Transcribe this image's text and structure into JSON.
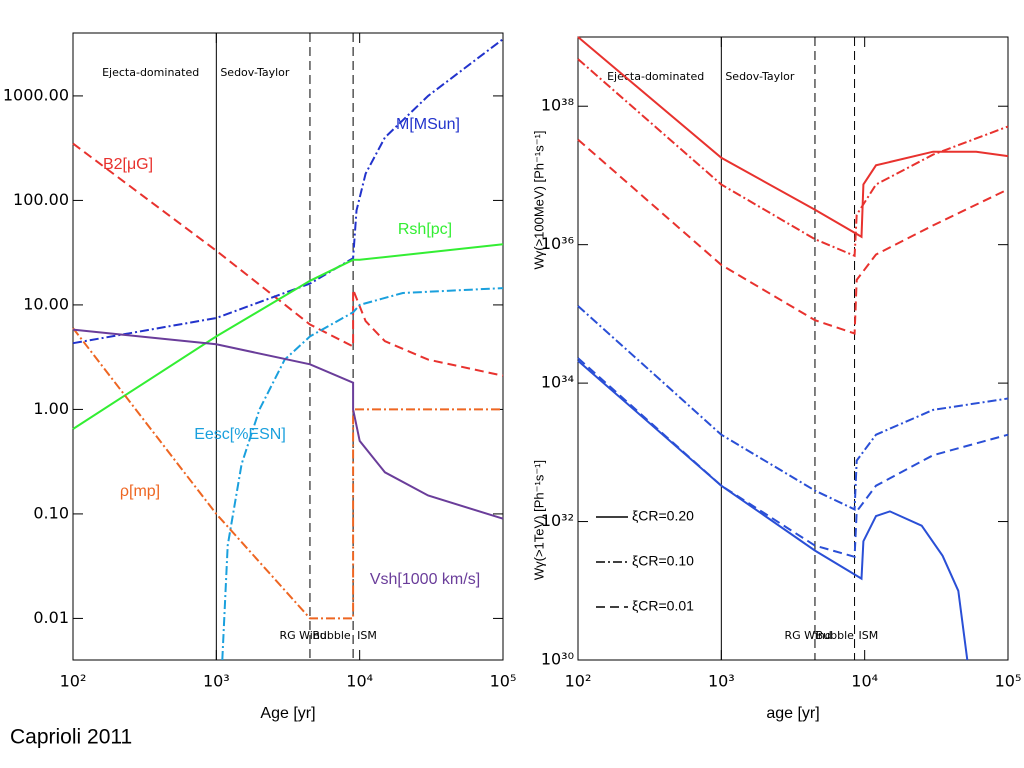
{
  "caption": "Caprioli 2011",
  "chart_data": [
    {
      "type": "line",
      "xlabel": "Age [yr]",
      "xlog": true,
      "ylog": true,
      "xlim": [
        100,
        100000
      ],
      "ylim": [
        0.004,
        4000
      ],
      "xticks": [
        {
          "value": 100,
          "label": "10²"
        },
        {
          "value": 1000,
          "label": "10³"
        },
        {
          "value": 10000,
          "label": "10⁴"
        },
        {
          "value": 100000,
          "label": "10⁵"
        }
      ],
      "yticks": [
        {
          "value": 1000,
          "label": "1000.00"
        },
        {
          "value": 100,
          "label": "100.00"
        },
        {
          "value": 10,
          "label": "10.00"
        },
        {
          "value": 1,
          "label": "1.00"
        },
        {
          "value": 0.1,
          "label": "0.10"
        },
        0.01
      ],
      "annotations": [
        "Ejecta-dominated",
        "Sedov-Taylor",
        "RG Wind",
        "Bubble",
        "ISM"
      ],
      "vlines": [
        {
          "x": 1000,
          "style": "solid"
        },
        {
          "x": 4500,
          "style": "dashed"
        },
        {
          "x": 9000,
          "style": "dashed"
        }
      ],
      "series": [
        {
          "name": "B2[μG]",
          "color": "#e8322e",
          "style": "dashed",
          "x": [
            100,
            1000,
            4500,
            9000,
            9000,
            11000,
            15000,
            30000,
            100000
          ],
          "values": [
            350,
            33,
            6.5,
            4,
            14,
            7,
            4.5,
            3,
            2.1
          ]
        },
        {
          "name": "M[MSun]",
          "color": "#2233cc",
          "style": "dashdot",
          "x": [
            100,
            1000,
            4500,
            9000,
            9500,
            11000,
            15000,
            30000,
            100000
          ],
          "values": [
            4.3,
            7.5,
            16,
            28,
            80,
            180,
            400,
            1000,
            3500
          ]
        },
        {
          "name": "Rsh[pc]",
          "color": "#33ee33",
          "style": "solid",
          "x": [
            100,
            1000,
            4500,
            9000,
            10000,
            100000
          ],
          "values": [
            0.65,
            5,
            17,
            27,
            27,
            38
          ]
        },
        {
          "name": "Eesc[%ESN]",
          "color": "#1aa0dd",
          "style": "dashdot",
          "x": [
            1100,
            1200,
            1500,
            2000,
            3000,
            4500,
            9000,
            10000,
            20000,
            100000
          ],
          "values": [
            0.004,
            0.05,
            0.3,
            1,
            3,
            5,
            8.5,
            10,
            13,
            14.5
          ]
        },
        {
          "name": "ρ[mp]",
          "color": "#ee6622",
          "style": "dashdot",
          "x": [
            100,
            1000,
            4500,
            9000,
            9000,
            100000
          ],
          "values": [
            6,
            0.1,
            0.01,
            0.01,
            1,
            1
          ]
        },
        {
          "name": "Vsh[1000 km/s]",
          "color": "#6a3d9a",
          "style": "solid",
          "x": [
            100,
            1000,
            4500,
            9000,
            9000,
            10000,
            15000,
            30000,
            100000
          ],
          "values": [
            5.8,
            4.2,
            2.7,
            1.8,
            1,
            0.5,
            0.25,
            0.15,
            0.09
          ]
        }
      ]
    },
    {
      "type": "line",
      "xlabel": "age [yr]",
      "ylabels": [
        "Wγ(>100MeV) [Ph⁻¹s⁻¹]",
        "Wγ(>1TeV) [Ph⁻¹s⁻¹]"
      ],
      "xlog": true,
      "ylog": true,
      "xlim": [
        100,
        100000
      ],
      "ylim": [
        1e+30,
        1e+39
      ],
      "xticks": [
        {
          "value": 100,
          "label": "10²"
        },
        {
          "value": 1000,
          "label": "10³"
        },
        {
          "value": 10000,
          "label": "10⁴"
        },
        {
          "value": 100000,
          "label": "10⁵"
        }
      ],
      "yticks": [
        {
          "value": 1e+30,
          "label": "10³⁰"
        },
        {
          "value": 1e+32,
          "label": "10³²"
        },
        {
          "value": 1e+34,
          "label": "10³⁴"
        },
        {
          "value": 1e+36,
          "label": "10³⁶"
        },
        {
          "value": 1e+38,
          "label": "10³⁸"
        }
      ],
      "annotations": [
        "Ejecta-dominated",
        "Sedov-Taylor",
        "RG Wind",
        "Bubble",
        "ISM"
      ],
      "vlines": [
        {
          "x": 1000,
          "style": "solid"
        },
        {
          "x": 4500,
          "style": "dashed"
        },
        {
          "x": 8500,
          "style": "dashed"
        }
      ],
      "legend": [
        {
          "label": "ξCR=0.20",
          "style": "solid"
        },
        {
          "label": "ξCR=0.10",
          "style": "dashdot"
        },
        {
          "label": "ξCR=0.01",
          "style": "dashed"
        }
      ],
      "series": [
        {
          "color": "#e8322e",
          "style": "solid",
          "x": [
            100,
            1000,
            4500,
            9500,
            9800,
            12000,
            30000,
            60000,
            100000
          ],
          "values": [
            1e+39,
            1.8e+37,
            3.2e+36,
            1.3e+36,
            7.4e+36,
            1.4e+37,
            2.2e+37,
            2.2e+37,
            1.9e+37
          ]
        },
        {
          "color": "#e8322e",
          "style": "dashdot",
          "x": [
            100,
            1000,
            4500,
            8500,
            8800,
            12000,
            30000,
            100000
          ],
          "values": [
            4.8e+38,
            7.4e+36,
            1.2e+36,
            6.9e+35,
            2.7e+36,
            7.4e+36,
            2e+37,
            5.1e+37
          ]
        },
        {
          "color": "#e8322e",
          "style": "dashed",
          "x": [
            100,
            1000,
            4500,
            8500,
            8800,
            12000,
            30000,
            100000
          ],
          "values": [
            3.3e+37,
            5.1e+35,
            8.1e+34,
            5.2e+34,
            3.1e+35,
            7.2e+35,
            1.9e+36,
            6.3e+36
          ]
        },
        {
          "color": "#2a4fd6",
          "style": "dashdot",
          "x": [
            100,
            1000,
            4500,
            8500,
            8800,
            12000,
            30000,
            100000
          ],
          "values": [
            1.3e+35,
            1.8e+33,
            2.8e+32,
            1.5e+32,
            7.6e+32,
            1.8e+33,
            4.1e+33,
            6e+33
          ]
        },
        {
          "color": "#2a4fd6",
          "style": "dashed",
          "x": [
            100,
            1000,
            4500,
            8500,
            8800,
            12000,
            30000,
            100000
          ],
          "values": [
            2.3e+34,
            3.3e+32,
            4.5e+31,
            3.1e+31,
            1.4e+32,
            3.3e+32,
            9.1e+32,
            1.8e+33
          ]
        },
        {
          "color": "#2a4fd6",
          "style": "solid",
          "x": [
            100,
            1000,
            4500,
            9500,
            9800,
            12000,
            15000,
            25000,
            35000,
            45000,
            52000
          ],
          "values": [
            2.1e+34,
            3.3e+32,
            3.8e+31,
            1.5e+31,
            5.2e+31,
            1.2e+32,
            1.4e+32,
            8.7e+31,
            3.2e+31,
            1e+31,
            1e+30
          ]
        }
      ]
    }
  ]
}
